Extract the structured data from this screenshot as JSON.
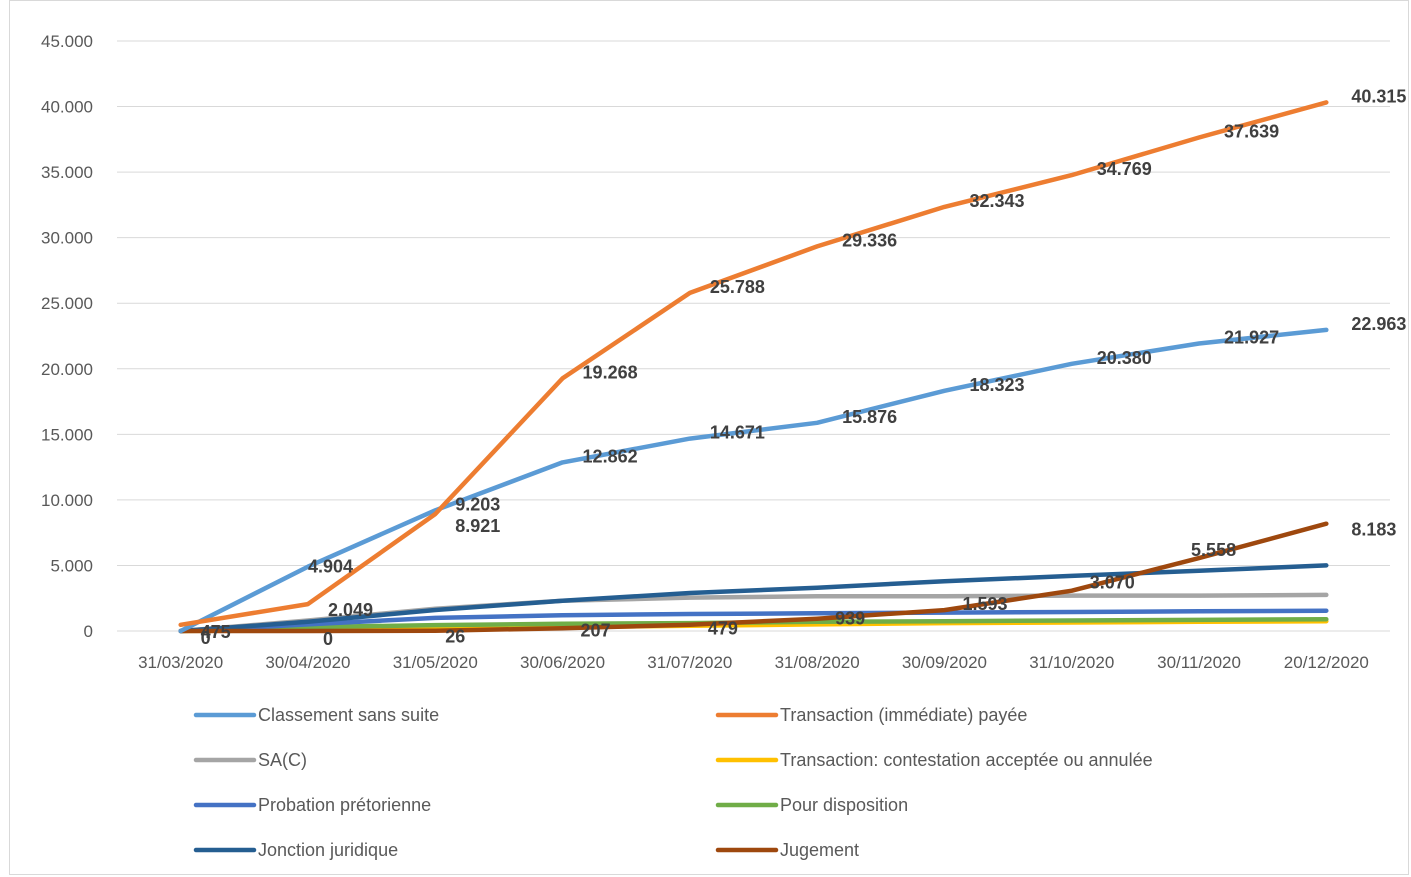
{
  "chart_data": {
    "type": "line",
    "categories": [
      "31/03/2020",
      "30/04/2020",
      "31/05/2020",
      "30/06/2020",
      "31/07/2020",
      "31/08/2020",
      "30/09/2020",
      "31/10/2020",
      "30/11/2020",
      "20/12/2020"
    ],
    "ylim": [
      0,
      45000
    ],
    "yticks": [
      0,
      5000,
      10000,
      15000,
      20000,
      25000,
      30000,
      35000,
      40000,
      45000
    ],
    "ytick_labels": [
      "0",
      "5.000",
      "10.000",
      "15.000",
      "20.000",
      "25.000",
      "30.000",
      "35.000",
      "40.000",
      "45.000"
    ],
    "grid": true,
    "legend_position": "bottom",
    "series": [
      {
        "name": "Classement sans suite",
        "color": "#5b9bd5",
        "values": [
          0,
          4904,
          9203,
          12862,
          14671,
          15876,
          18323,
          20380,
          21927,
          22963
        ],
        "labels": [
          "",
          "4.904",
          "9.203",
          "12.862",
          "14.671",
          "15.876",
          "18.323",
          "20.380",
          "21.927",
          "22.963"
        ]
      },
      {
        "name": "Transaction (immédiate) payée",
        "color": "#ed7d31",
        "values": [
          475,
          2049,
          8921,
          19268,
          25788,
          29336,
          32343,
          34769,
          37639,
          40315
        ],
        "labels": [
          "475",
          "2.049",
          "8.921",
          "19.268",
          "25.788",
          "29.336",
          "32.343",
          "34.769",
          "37.639",
          "40.315"
        ]
      },
      {
        "name": "SA(C)",
        "color": "#a5a5a5",
        "values": [
          0,
          800,
          1700,
          2300,
          2550,
          2650,
          2650,
          2700,
          2700,
          2750
        ],
        "labels": []
      },
      {
        "name": "Transaction: contestation acceptée ou annulée",
        "color": "#ffc000",
        "values": [
          0,
          100,
          200,
          300,
          400,
          500,
          600,
          650,
          700,
          750
        ],
        "labels": []
      },
      {
        "name": "Probation prétorienne",
        "color": "#4472c4",
        "values": [
          0,
          500,
          1000,
          1200,
          1300,
          1350,
          1400,
          1450,
          1500,
          1550
        ],
        "labels": []
      },
      {
        "name": "Pour disposition",
        "color": "#70ad47",
        "values": [
          0,
          300,
          450,
          550,
          600,
          700,
          750,
          800,
          850,
          900
        ],
        "labels": []
      },
      {
        "name": "Jonction juridique",
        "color": "#255e91",
        "values": [
          0,
          700,
          1600,
          2300,
          2900,
          3300,
          3800,
          4200,
          4600,
          5000
        ],
        "labels": []
      },
      {
        "name": "Jugement",
        "color": "#9e480e",
        "values": [
          0,
          0,
          26,
          207,
          479,
          939,
          1593,
          3070,
          5558,
          8183
        ],
        "labels": [
          "0",
          "0",
          "26",
          "207",
          "479",
          "939",
          "1.593",
          "3.070",
          "5.558",
          "8.183"
        ]
      }
    ]
  }
}
